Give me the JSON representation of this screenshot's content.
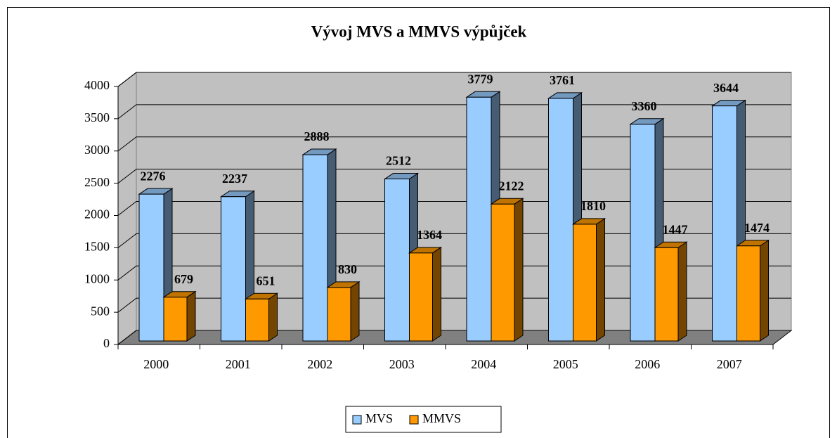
{
  "chart_data": {
    "type": "bar3d",
    "title": "Vývoj MVS a MMVS výpůjček",
    "categories": [
      "2000",
      "2001",
      "2002",
      "2003",
      "2004",
      "2005",
      "2006",
      "2007"
    ],
    "series": [
      {
        "name": "MVS",
        "color": "#99ccff",
        "values": [
          2276,
          2237,
          2888,
          2512,
          3779,
          3761,
          3360,
          3644
        ]
      },
      {
        "name": "MMVS",
        "color": "#ff9900",
        "values": [
          679,
          651,
          830,
          1364,
          2122,
          1810,
          1447,
          1474
        ]
      }
    ],
    "ylim": [
      0,
      4000
    ],
    "yticks": [
      0,
      500,
      1000,
      1500,
      2000,
      2500,
      3000,
      3500,
      4000
    ],
    "grid": true,
    "legend": "bottom"
  }
}
